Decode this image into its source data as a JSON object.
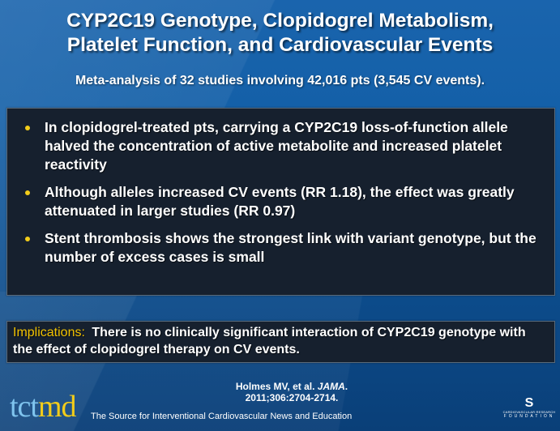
{
  "slide": {
    "title_line1": "CYP2C19 Genotype, Clopidogrel Metabolism,",
    "title_line2": "Platelet Function, and Cardiovascular Events",
    "subtitle": "Meta-analysis of 32 studies involving 42,016 pts (3,545 CV events).",
    "bullets": [
      "In clopidogrel-treated pts, carrying a CYP2C19 loss-of-function allele halved the concentration of active metabolite and increased platelet reactivity",
      "Although alleles increased CV events (RR 1.18), the effect was greatly attenuated in larger studies (RR 0.97)",
      "Stent thrombosis shows the strongest link with variant genotype, but the number of excess cases is small"
    ],
    "implications": {
      "label": "Implications:",
      "text": "There is no clinically significant interaction of CYP2C19 genotype with the effect of clopidogrel therapy on CV events."
    },
    "citation": {
      "authors": "Holmes MV, et al.",
      "journal": "JAMA",
      "period": ".",
      "ref": "2011;306:2704-2714."
    }
  },
  "footer": {
    "logo_tct": "tct",
    "logo_md": "md",
    "tagline": "The Source for Interventional Cardiovascular News and Education",
    "crf_swirl": "S",
    "crf_line1": "CARDIOVASCULAR RESEARCH",
    "crf_line2": "FOUNDATION"
  },
  "colors": {
    "background": "#1460a8",
    "panel": "#16202e",
    "bullet": "#f2cc1a",
    "implications_label": "#f2c200",
    "logo_tct": "#7fc4ee",
    "logo_md": "#f2cc1a"
  }
}
